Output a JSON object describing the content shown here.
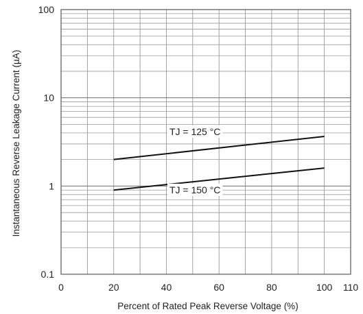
{
  "chart_data": {
    "type": "line",
    "title": "",
    "xlabel": "Percent of Rated Peak Reverse Voltage (%)",
    "ylabel": "Instantaneous Reverse Leakage Current (µA)",
    "xlim": [
      0,
      110
    ],
    "ylim": [
      0.1,
      100
    ],
    "yscale": "log",
    "grid": true,
    "x_ticks": [
      "0",
      "20",
      "40",
      "60",
      "80",
      "100",
      "110"
    ],
    "y_ticks": [
      "0.1",
      "1",
      "10",
      "100"
    ],
    "series": [
      {
        "name": "TJ = 125 °C",
        "x": [
          20,
          100
        ],
        "y": [
          2.0,
          3.65
        ],
        "color": "#111111"
      },
      {
        "name": "TJ = 150 °C",
        "x": [
          20,
          100
        ],
        "y": [
          0.9,
          1.6
        ],
        "color": "#111111"
      }
    ]
  }
}
